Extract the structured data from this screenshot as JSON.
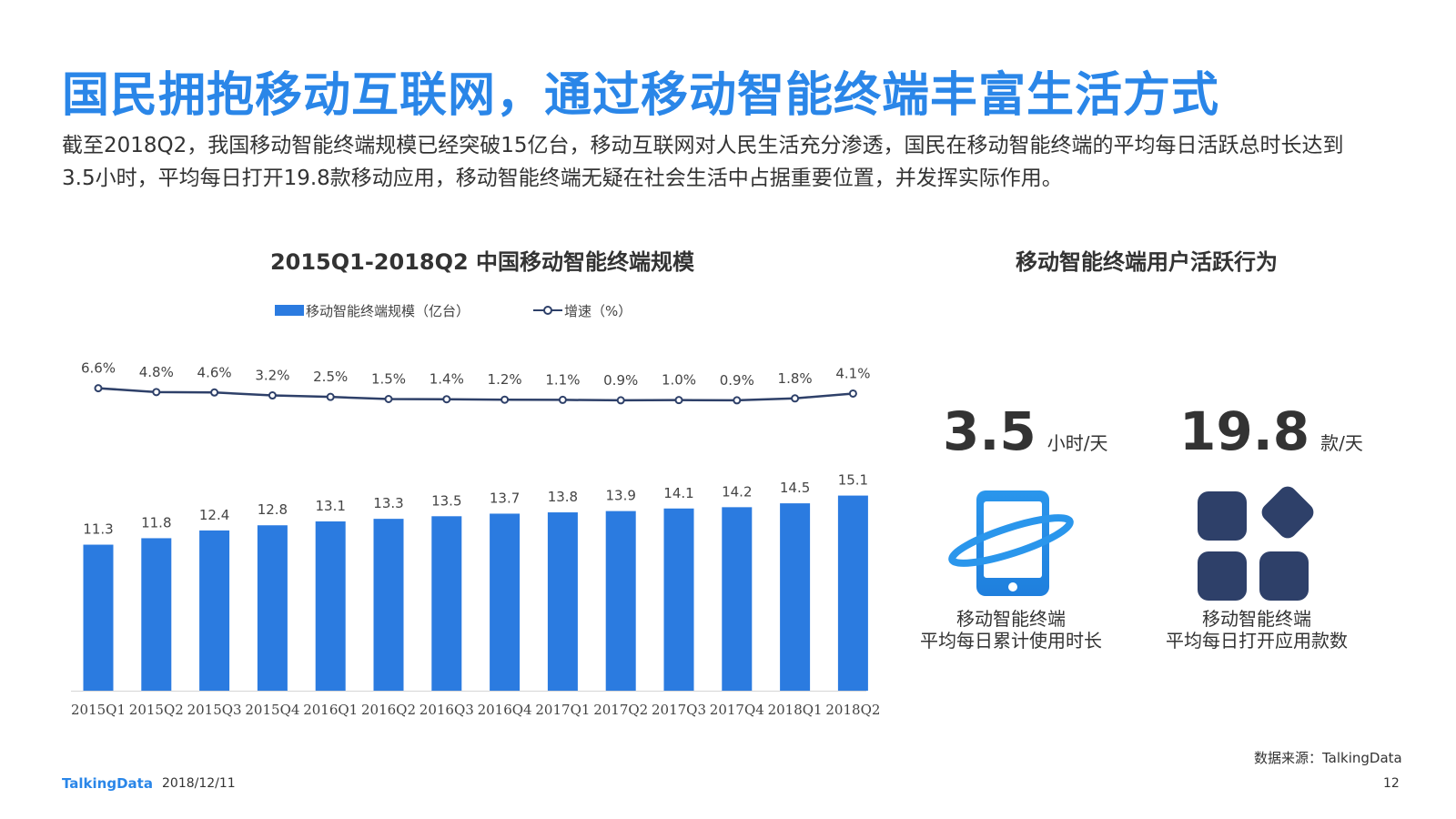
{
  "header": {
    "title": "国民拥抱移动互联网，通过移动智能终端丰富生活方式",
    "description": "截至2018Q2，我国移动智能终端规模已经突破15亿台，移动互联网对人民生活充分渗透，国民在移动智能终端的平均每日活跃总时长达到3.5小时，平均每日打开19.8款移动应用，移动智能终端无疑在社会生活中占据重要位置，并发挥实际作用。"
  },
  "chart_data": {
    "type": "bar",
    "title": "2015Q1-2018Q2 中国移动智能终端规模",
    "categories": [
      "2015Q1",
      "2015Q2",
      "2015Q3",
      "2015Q4",
      "2016Q1",
      "2016Q2",
      "2016Q3",
      "2016Q4",
      "2017Q1",
      "2017Q2",
      "2017Q3",
      "2017Q4",
      "2018Q1",
      "2018Q2"
    ],
    "series": [
      {
        "name": "移动智能终端规模（亿台）",
        "type": "bar",
        "color": "#2b7be0",
        "values": [
          11.3,
          11.8,
          12.4,
          12.8,
          13.1,
          13.3,
          13.5,
          13.7,
          13.8,
          13.9,
          14.1,
          14.2,
          14.5,
          15.1
        ]
      },
      {
        "name": "增速（%）",
        "type": "line",
        "color": "#2e4069",
        "values": [
          6.6,
          4.8,
          4.6,
          3.2,
          2.5,
          1.5,
          1.4,
          1.2,
          1.1,
          0.9,
          1.0,
          0.9,
          1.8,
          4.1
        ],
        "labels": [
          "6.6%",
          "4.8%",
          "4.6%",
          "3.2%",
          "2.5%",
          "1.5%",
          "1.4%",
          "1.2%",
          "1.1%",
          "0.9%",
          "1.0%",
          "0.9%",
          "1.8%",
          "4.1%"
        ]
      }
    ],
    "legend_position": "top",
    "grid": false
  },
  "right_panel": {
    "title": "移动智能终端用户活跃行为",
    "stats": [
      {
        "value": "3.5",
        "unit": "小时/天",
        "caption_line1": "移动智能终端",
        "caption_line2": "平均每日累计使用时长",
        "icon": "smartphone-orbit-icon"
      },
      {
        "value": "19.8",
        "unit": "款/天",
        "caption_line1": "移动智能终端",
        "caption_line2": "平均每日打开应用款数",
        "icon": "app-grid-icon"
      }
    ]
  },
  "footer": {
    "source": "数据来源：TalkingData",
    "logo": "TalkingData",
    "date": "2018/12/11",
    "page": "12"
  },
  "colors": {
    "accent": "#2a86e8",
    "bar": "#2b7be0",
    "line": "#2e4069",
    "icon_dark": "#2e4069"
  }
}
